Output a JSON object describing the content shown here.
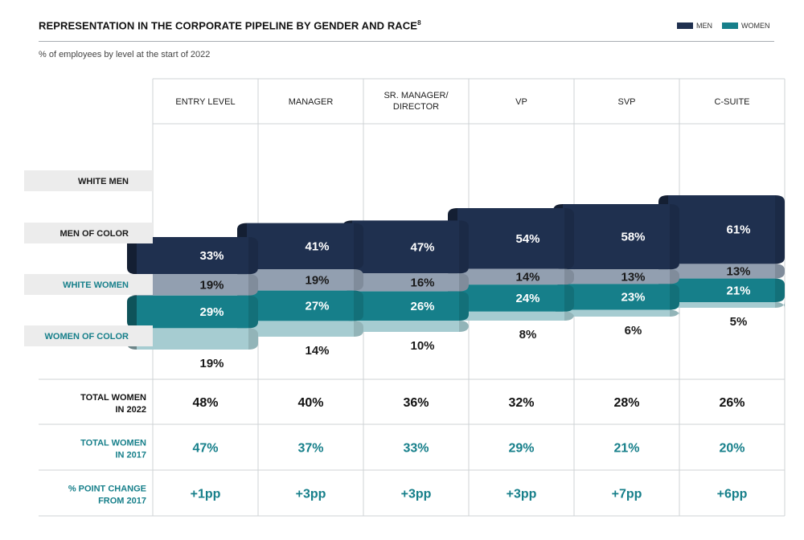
{
  "title": "REPRESENTATION IN THE CORPORATE PIPELINE BY GENDER AND RACE",
  "title_footnote": "8",
  "subtitle": "% of employees by level at the start of 2022",
  "legend": [
    {
      "label": "MEN",
      "color": "#1f304f"
    },
    {
      "label": "WOMEN",
      "color": "#167f8a"
    }
  ],
  "colors": {
    "white_men": "#1f304f",
    "men_of_color": "#929fb0",
    "white_women": "#167f8a",
    "women_of_color": "#a6ccd1",
    "women_text": "#167f8a",
    "grid": "#cfd3d6"
  },
  "chart_data": {
    "type": "bar",
    "categories": [
      [
        "ENTRY LEVEL"
      ],
      [
        "MANAGER"
      ],
      [
        "SR. MANAGER/",
        "DIRECTOR"
      ],
      [
        "VP"
      ],
      [
        "SVP"
      ],
      [
        "C-SUITE"
      ]
    ],
    "series": [
      {
        "name": "WHITE MEN",
        "values": [
          33,
          41,
          47,
          54,
          58,
          61
        ],
        "labels": [
          "33%",
          "41%",
          "47%",
          "54%",
          "58%",
          "61%"
        ]
      },
      {
        "name": "MEN OF COLOR",
        "values": [
          19,
          19,
          16,
          14,
          13,
          13
        ],
        "labels": [
          "19%",
          "19%",
          "16%",
          "14%",
          "13%",
          "13%"
        ]
      },
      {
        "name": "WHITE WOMEN",
        "values": [
          29,
          27,
          26,
          24,
          23,
          21
        ],
        "labels": [
          "29%",
          "27%",
          "26%",
          "24%",
          "23%",
          "21%"
        ]
      },
      {
        "name": "WOMEN OF COLOR",
        "values": [
          19,
          14,
          10,
          8,
          6,
          5
        ],
        "labels": [
          "19%",
          "14%",
          "10%",
          "8%",
          "6%",
          "5%"
        ]
      }
    ],
    "table_rows": [
      {
        "label": [
          "TOTAL WOMEN",
          "IN 2022"
        ],
        "values": [
          "48%",
          "40%",
          "36%",
          "32%",
          "28%",
          "26%"
        ],
        "style": "dark"
      },
      {
        "label": [
          "TOTAL WOMEN",
          "IN 2017"
        ],
        "values": [
          "47%",
          "37%",
          "33%",
          "29%",
          "21%",
          "20%"
        ],
        "style": "teal"
      },
      {
        "label": [
          "% POINT CHANGE",
          "FROM 2017"
        ],
        "values": [
          "+1pp",
          "+3pp",
          "+3pp",
          "+3pp",
          "+7pp",
          "+6pp"
        ],
        "style": "teal"
      }
    ]
  }
}
